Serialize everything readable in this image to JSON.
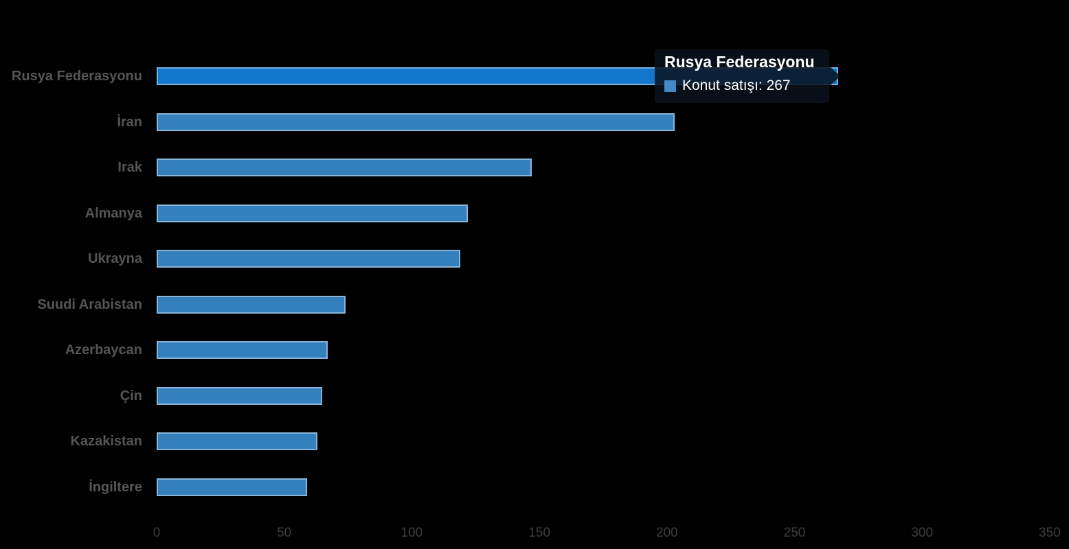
{
  "page": {
    "background": "#000000"
  },
  "tooltip": {
    "title": "Rusya Federasyonu",
    "body": "Konut satışı: 267",
    "marker_color": "#4189c9",
    "background": "rgba(10,18,28,0.85)"
  },
  "chart_data": {
    "type": "bar",
    "orientation": "horizontal",
    "title": "",
    "xlabel": "",
    "ylabel": "",
    "categories": [
      "Rusya Federasyonu",
      "İran",
      "Irak",
      "Almanya",
      "Ukrayna",
      "Suudi Arabistan",
      "Azerbaycan",
      "Çin",
      "Kazakistan",
      "İngiltere"
    ],
    "series": [
      {
        "name": "Konut satışı",
        "values": [
          267,
          203,
          147,
          122,
          119,
          74,
          67,
          65,
          63,
          59
        ]
      }
    ],
    "x_ticks": [
      "0",
      "50",
      "100",
      "150",
      "200",
      "250",
      "300",
      "350"
    ],
    "x_tick_values": [
      0,
      50,
      100,
      150,
      200,
      250,
      300,
      350
    ],
    "xlim": [
      0,
      350
    ],
    "grid": false,
    "legend": "none",
    "highlighted_category": "Rusya Federasyonu",
    "bar_color": "#3380bd",
    "bar_color_hover": "#1277cc",
    "category_label_color": "#555555",
    "axis_label_color": "#3e3e3e"
  }
}
